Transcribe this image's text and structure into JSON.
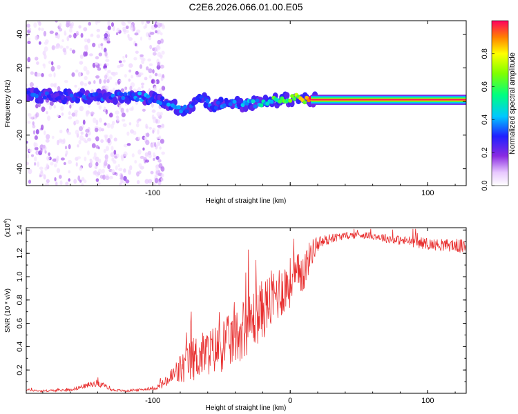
{
  "title": "C2E6.2026.066.01.00.E05",
  "colors": {
    "snr_line": "#e83030",
    "background": "#ffffff",
    "axis": "#000000"
  },
  "chart_data": [
    {
      "type": "heatmap",
      "name": "spectrogram",
      "xlabel": "Height of straight line (km)",
      "ylabel": "Frequency (Hz)",
      "xlim": [
        -192,
        128
      ],
      "ylim": [
        -50,
        48
      ],
      "xticks": [
        -100,
        0,
        100
      ],
      "xtick_labels": [
        "-100",
        "",
        "100"
      ],
      "yticks": [
        -40,
        -20,
        0,
        20,
        40
      ],
      "ytick_labels": [
        "-40",
        "-20",
        "0",
        "20",
        "40"
      ],
      "colorbar": {
        "label": "Normalized spectral amplitude",
        "range": [
          0,
          1
        ],
        "ticks": [
          0.0,
          0.2,
          0.4,
          0.6,
          0.8
        ],
        "tick_labels": [
          "0.0",
          "0.2",
          "0.4",
          "0.6",
          "0.8"
        ]
      },
      "ridge": [
        {
          "x": -192,
          "f": 4,
          "amp": 0.35
        },
        {
          "x": -170,
          "f": 3,
          "amp": 0.3
        },
        {
          "x": -150,
          "f": 3,
          "amp": 0.35
        },
        {
          "x": -130,
          "f": 3,
          "amp": 0.35
        },
        {
          "x": -110,
          "f": 3,
          "amp": 0.4
        },
        {
          "x": -95,
          "f": 1,
          "amp": 0.35
        },
        {
          "x": -85,
          "f": -3,
          "amp": 0.4
        },
        {
          "x": -75,
          "f": -5,
          "amp": 0.35
        },
        {
          "x": -65,
          "f": 3,
          "amp": 0.3
        },
        {
          "x": -55,
          "f": -3,
          "amp": 0.35
        },
        {
          "x": -45,
          "f": 0,
          "amp": 0.35
        },
        {
          "x": -35,
          "f": -2,
          "amp": 0.4
        },
        {
          "x": -25,
          "f": -1,
          "amp": 0.45
        },
        {
          "x": -15,
          "f": 0,
          "amp": 0.55
        },
        {
          "x": -5,
          "f": 1,
          "amp": 0.7
        },
        {
          "x": 5,
          "f": 2,
          "amp": 0.85
        },
        {
          "x": 15,
          "f": 1,
          "amp": 0.95
        },
        {
          "x": 128,
          "f": 1,
          "amp": 1.0
        }
      ]
    },
    {
      "type": "line",
      "name": "snr",
      "xlabel": "Height of straight line (km)",
      "ylabel": "SNR (10 * v/v)",
      "multiplier_label": "(x10",
      "multiplier_exp": "4",
      "xlim": [
        -192,
        128
      ],
      "ylim": [
        0,
        1.42
      ],
      "xticks": [
        -100,
        0,
        100
      ],
      "xtick_labels": [
        "-100",
        "0",
        "100"
      ],
      "yticks": [
        0.2,
        0.4,
        0.6,
        0.8,
        1.0,
        1.2,
        1.4
      ],
      "ytick_labels": [
        "0.2",
        "0.4",
        "0.6",
        "0.8",
        "1.0",
        "1.2",
        "1.4"
      ],
      "series": [
        {
          "name": "SNR",
          "x": [
            -192,
            -180,
            -160,
            -150,
            -140,
            -130,
            -120,
            -110,
            -100,
            -95,
            -90,
            -85,
            -80,
            -75,
            -70,
            -60,
            -50,
            -40,
            -30,
            -20,
            -10,
            0,
            10,
            15,
            20,
            30,
            40,
            50,
            60,
            70,
            80,
            90,
            100,
            110,
            120,
            128
          ],
          "values": [
            0.03,
            0.02,
            0.03,
            0.06,
            0.09,
            0.03,
            0.02,
            0.03,
            0.04,
            0.06,
            0.1,
            0.15,
            0.2,
            0.25,
            0.3,
            0.35,
            0.4,
            0.48,
            0.6,
            0.72,
            0.85,
            0.95,
            1.05,
            1.2,
            1.28,
            1.33,
            1.35,
            1.36,
            1.35,
            1.33,
            1.31,
            1.3,
            1.28,
            1.27,
            1.27,
            1.25
          ],
          "noise": [
            0.01,
            0.01,
            0.01,
            0.02,
            0.03,
            0.01,
            0.01,
            0.01,
            0.01,
            0.03,
            0.05,
            0.1,
            0.14,
            0.17,
            0.2,
            0.2,
            0.22,
            0.24,
            0.26,
            0.26,
            0.25,
            0.22,
            0.18,
            0.12,
            0.07,
            0.04,
            0.03,
            0.03,
            0.03,
            0.04,
            0.04,
            0.05,
            0.05,
            0.05,
            0.06,
            0.06
          ]
        }
      ]
    }
  ]
}
